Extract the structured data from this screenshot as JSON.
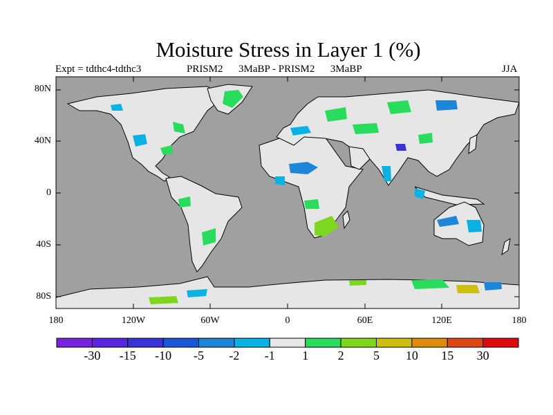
{
  "title": "Moisture Stress in Layer 1 (%)",
  "subtitle": {
    "experiment": "Expt = tdthc4-tdthc3",
    "comparison": "PRISM2      3MaBP - PRISM2      3MaBP",
    "season": "JJA"
  },
  "axes": {
    "y_ticks": [
      "80N",
      "40N",
      "0",
      "40S",
      "80S"
    ],
    "x_ticks": [
      "180",
      "120W",
      "60W",
      "0",
      "60E",
      "120E",
      "180"
    ]
  },
  "colorbar": {
    "labels": [
      "-30",
      "-15",
      "-10",
      "-5",
      "-2",
      "-1",
      "1",
      "2",
      "5",
      "10",
      "15",
      "30"
    ],
    "colors": [
      "#7a22e0",
      "#5a26dd",
      "#3a34d8",
      "#1a56d8",
      "#1e86d8",
      "#08b2e2",
      "#e6e6e6",
      "#28dc5c",
      "#7ed71e",
      "#cdbf0e",
      "#df8c0c",
      "#dc4812",
      "#dd0a10"
    ]
  },
  "colors": {
    "ocean": "#a0a0a0",
    "land": "#e6e6e6",
    "coast": "#000000"
  }
}
